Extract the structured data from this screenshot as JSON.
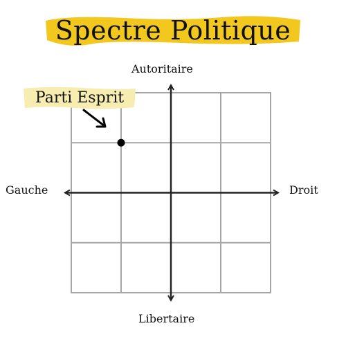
{
  "title": "Spectre Politique",
  "colors": {
    "highlight": "#F2C81F",
    "tag_highlight": "#F7EDB0",
    "grid": "#A6A6A6",
    "axis": "#222222",
    "text": "#111111"
  },
  "axes": {
    "top": "Autoritaire",
    "bottom": "Libertaire",
    "left": "Gauche",
    "right": "Droit"
  },
  "chart_data": {
    "type": "scatter",
    "grid": true,
    "grid_divisions": 4,
    "xlim": [
      -2,
      2
    ],
    "ylim": [
      -2,
      2
    ],
    "points": [
      {
        "label": "Parti Esprit",
        "x": -1,
        "y": 1
      }
    ]
  }
}
